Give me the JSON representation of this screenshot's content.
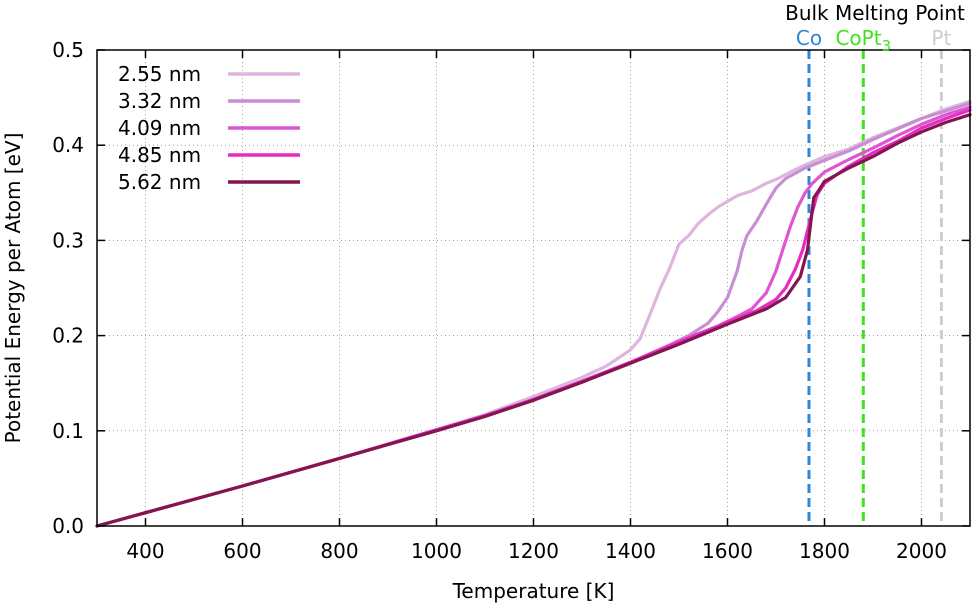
{
  "chart_data": {
    "type": "line",
    "xlabel": "Temperature [K]",
    "ylabel": "Potential Energy per Atom [eV]",
    "xlim": [
      300,
      2100
    ],
    "ylim": [
      0.0,
      0.5
    ],
    "x_ticks": [
      400,
      600,
      800,
      1000,
      1200,
      1400,
      1600,
      1800,
      2000
    ],
    "y_ticks": [
      "0.0",
      "0.1",
      "0.2",
      "0.3",
      "0.4",
      "0.5"
    ],
    "grid": true,
    "legend_position": "top-left",
    "series": [
      {
        "name": "2.55 nm",
        "color": "#dcb6dc",
        "points": [
          [
            300,
            0.0
          ],
          [
            400,
            0.014
          ],
          [
            600,
            0.042
          ],
          [
            800,
            0.071
          ],
          [
            1000,
            0.101
          ],
          [
            1100,
            0.117
          ],
          [
            1200,
            0.136
          ],
          [
            1300,
            0.156
          ],
          [
            1350,
            0.168
          ],
          [
            1400,
            0.185
          ],
          [
            1420,
            0.197
          ],
          [
            1440,
            0.222
          ],
          [
            1460,
            0.248
          ],
          [
            1480,
            0.27
          ],
          [
            1500,
            0.296
          ],
          [
            1520,
            0.305
          ],
          [
            1540,
            0.318
          ],
          [
            1560,
            0.327
          ],
          [
            1580,
            0.335
          ],
          [
            1600,
            0.341
          ],
          [
            1620,
            0.347
          ],
          [
            1650,
            0.352
          ],
          [
            1680,
            0.36
          ],
          [
            1700,
            0.364
          ],
          [
            1750,
            0.377
          ],
          [
            1800,
            0.388
          ],
          [
            1850,
            0.396
          ],
          [
            1900,
            0.408
          ],
          [
            1950,
            0.418
          ],
          [
            2000,
            0.428
          ],
          [
            2050,
            0.438
          ],
          [
            2100,
            0.446
          ]
        ]
      },
      {
        "name": "3.32 nm",
        "color": "#c78fd2",
        "points": [
          [
            300,
            0.0
          ],
          [
            400,
            0.014
          ],
          [
            600,
            0.042
          ],
          [
            800,
            0.071
          ],
          [
            1000,
            0.101
          ],
          [
            1100,
            0.116
          ],
          [
            1200,
            0.133
          ],
          [
            1300,
            0.152
          ],
          [
            1400,
            0.172
          ],
          [
            1480,
            0.19
          ],
          [
            1520,
            0.2
          ],
          [
            1560,
            0.213
          ],
          [
            1580,
            0.225
          ],
          [
            1600,
            0.24
          ],
          [
            1620,
            0.268
          ],
          [
            1630,
            0.29
          ],
          [
            1640,
            0.305
          ],
          [
            1660,
            0.32
          ],
          [
            1680,
            0.338
          ],
          [
            1700,
            0.355
          ],
          [
            1720,
            0.365
          ],
          [
            1760,
            0.376
          ],
          [
            1800,
            0.384
          ],
          [
            1850,
            0.394
          ],
          [
            1900,
            0.406
          ],
          [
            1950,
            0.417
          ],
          [
            2000,
            0.428
          ],
          [
            2050,
            0.436
          ],
          [
            2100,
            0.444
          ]
        ]
      },
      {
        "name": "4.09 nm",
        "color": "#e055d2",
        "points": [
          [
            300,
            0.0
          ],
          [
            400,
            0.014
          ],
          [
            600,
            0.042
          ],
          [
            800,
            0.071
          ],
          [
            1000,
            0.101
          ],
          [
            1100,
            0.116
          ],
          [
            1200,
            0.133
          ],
          [
            1300,
            0.152
          ],
          [
            1400,
            0.172
          ],
          [
            1500,
            0.194
          ],
          [
            1580,
            0.21
          ],
          [
            1620,
            0.22
          ],
          [
            1650,
            0.228
          ],
          [
            1680,
            0.245
          ],
          [
            1700,
            0.268
          ],
          [
            1715,
            0.292
          ],
          [
            1730,
            0.315
          ],
          [
            1745,
            0.335
          ],
          [
            1760,
            0.35
          ],
          [
            1775,
            0.36
          ],
          [
            1800,
            0.372
          ],
          [
            1850,
            0.385
          ],
          [
            1900,
            0.397
          ],
          [
            1950,
            0.41
          ],
          [
            2000,
            0.422
          ],
          [
            2050,
            0.432
          ],
          [
            2100,
            0.44
          ]
        ]
      },
      {
        "name": "4.85 nm",
        "color": "#e62bc4",
        "points": [
          [
            300,
            0.0
          ],
          [
            400,
            0.014
          ],
          [
            600,
            0.042
          ],
          [
            800,
            0.071
          ],
          [
            1000,
            0.101
          ],
          [
            1100,
            0.116
          ],
          [
            1200,
            0.133
          ],
          [
            1300,
            0.152
          ],
          [
            1400,
            0.172
          ],
          [
            1500,
            0.193
          ],
          [
            1600,
            0.214
          ],
          [
            1660,
            0.226
          ],
          [
            1700,
            0.238
          ],
          [
            1720,
            0.25
          ],
          [
            1740,
            0.27
          ],
          [
            1755,
            0.29
          ],
          [
            1765,
            0.31
          ],
          [
            1775,
            0.33
          ],
          [
            1785,
            0.348
          ],
          [
            1800,
            0.36
          ],
          [
            1850,
            0.378
          ],
          [
            1900,
            0.392
          ],
          [
            1950,
            0.404
          ],
          [
            2000,
            0.418
          ],
          [
            2050,
            0.428
          ],
          [
            2100,
            0.437
          ]
        ]
      },
      {
        "name": "5.62 nm",
        "color": "#82164e",
        "points": [
          [
            300,
            0.0
          ],
          [
            400,
            0.014
          ],
          [
            600,
            0.042
          ],
          [
            800,
            0.071
          ],
          [
            1000,
            0.1
          ],
          [
            1100,
            0.115
          ],
          [
            1200,
            0.132
          ],
          [
            1300,
            0.151
          ],
          [
            1400,
            0.171
          ],
          [
            1500,
            0.191
          ],
          [
            1600,
            0.212
          ],
          [
            1680,
            0.228
          ],
          [
            1720,
            0.24
          ],
          [
            1750,
            0.262
          ],
          [
            1765,
            0.29
          ],
          [
            1772,
            0.32
          ],
          [
            1778,
            0.345
          ],
          [
            1785,
            0.35
          ],
          [
            1800,
            0.362
          ],
          [
            1850,
            0.376
          ],
          [
            1900,
            0.388
          ],
          [
            1950,
            0.402
          ],
          [
            2000,
            0.414
          ],
          [
            2050,
            0.424
          ],
          [
            2100,
            0.432
          ]
        ]
      }
    ],
    "reference_lines": [
      {
        "x": 1768,
        "label": "Co",
        "color": "#2e86d7"
      },
      {
        "x": 1880,
        "label": "CoPt",
        "subscript": "3",
        "color": "#3ee31a"
      },
      {
        "x": 2041,
        "label": "Pt",
        "color": "#c9cfcf"
      }
    ],
    "annotation_title": "Bulk Melting Point"
  }
}
